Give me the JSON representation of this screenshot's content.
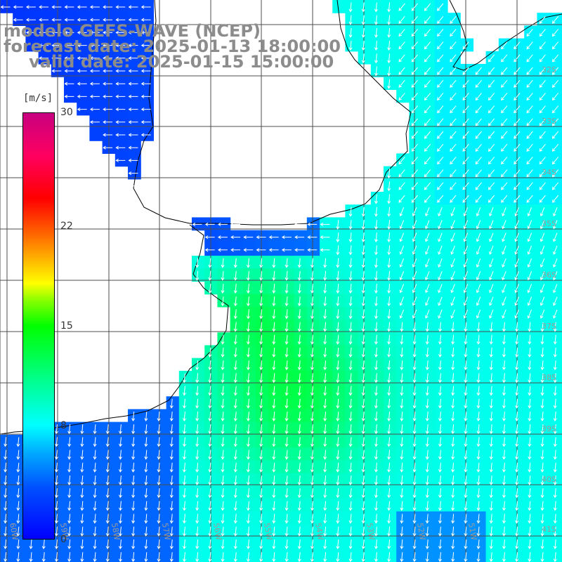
{
  "title": {
    "line1": "modelo GEFS-WAVE (NCEP)",
    "line2": "forecast date: 2025-01-13 18:00:00",
    "line3": "valid date: 2025-01-15 15:00:00"
  },
  "legend": {
    "unit": "[m/s]",
    "ticks": [
      {
        "label": "30",
        "value": 30
      },
      {
        "label": "22",
        "value": 22
      },
      {
        "label": "15",
        "value": 15
      },
      {
        "label": "8",
        "value": 8
      },
      {
        "label": "0",
        "value": 0
      }
    ],
    "range": [
      0,
      30
    ],
    "colors": [
      "#0000ff",
      "#00a8ff",
      "#00ffff",
      "#00ff00",
      "#ffff00",
      "#ff6000",
      "#ff0000",
      "#c80080"
    ]
  },
  "lat_labels": [
    "32S",
    "33S",
    "34S",
    "35S",
    "36S",
    "37S",
    "38S",
    "39S",
    "40S",
    "41S"
  ],
  "lon_labels": [
    "60W",
    "59W",
    "58W",
    "57W",
    "56W",
    "55W",
    "54W",
    "53W",
    "52W",
    "51W"
  ],
  "colors": {
    "land": "#ffffff",
    "coast": "#000000",
    "grid": "#4d4d4d",
    "arrow": "#ffffff",
    "title": "#8c8c8c"
  }
}
